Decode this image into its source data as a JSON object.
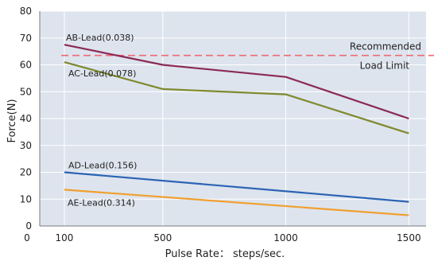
{
  "chart_data": {
    "type": "line",
    "xlabel": "Pulse Rate： steps/sec.",
    "ylabel": "Force(N)",
    "xlim": [
      0,
      1570
    ],
    "ylim": [
      0,
      80
    ],
    "x_ticks": [
      0,
      100,
      500,
      1000,
      1500
    ],
    "y_ticks": [
      0,
      10,
      20,
      30,
      40,
      50,
      60,
      70,
      80
    ],
    "x_tick_labels": [
      "0",
      "100",
      "500",
      "1000",
      "1500"
    ],
    "y_tick_labels": [
      "0",
      "10",
      "20",
      "30",
      "40",
      "50",
      "60",
      "70",
      "80"
    ],
    "grid": true,
    "background_color": "#dde4ee",
    "grid_color": "#ffffff",
    "reference_line": {
      "label_line1": "Recommended",
      "label_line2": "Load Limit",
      "y": 63.5,
      "color": "#f06a70"
    },
    "series": [
      {
        "name": "AB-Lead(0.038)",
        "x": [
          100,
          500,
          1000,
          1500
        ],
        "y": [
          67.5,
          60.0,
          55.5,
          40.0
        ],
        "color": "#8b2a55"
      },
      {
        "name": "AC-Lead(0.078)",
        "x": [
          100,
          500,
          1000,
          1500
        ],
        "y": [
          61.0,
          51.0,
          49.0,
          34.5
        ],
        "color": "#7f8a2e"
      },
      {
        "name": "AD-Lead(0.156)",
        "x": [
          100,
          1500
        ],
        "y": [
          20.0,
          9.0
        ],
        "color": "#2b63b3"
      },
      {
        "name": "AE-Lead(0.314)",
        "x": [
          100,
          1500
        ],
        "y": [
          13.5,
          4.0
        ],
        "color": "#f0a030"
      }
    ]
  }
}
